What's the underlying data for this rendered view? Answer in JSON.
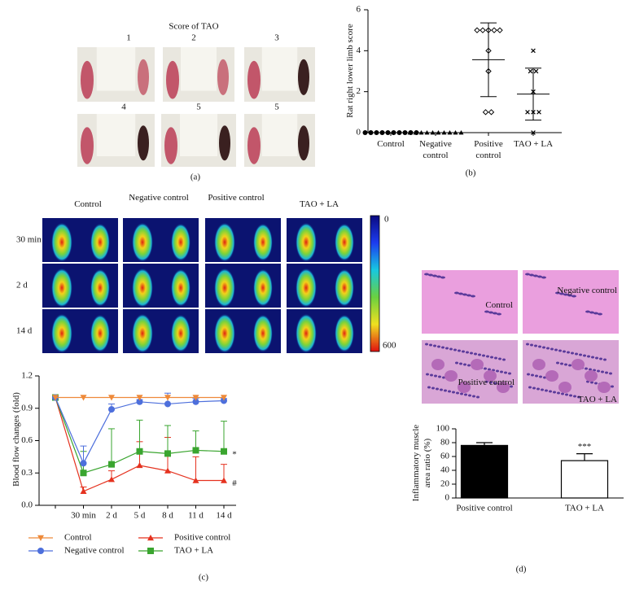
{
  "panel_a": {
    "title": "Score of TAO",
    "scores": [
      1,
      2,
      3,
      4,
      5,
      5
    ],
    "panel_label": "(a)"
  },
  "panel_c_images": {
    "columns": [
      "Control",
      "Negative control",
      "Positive control",
      "TAO + LA"
    ],
    "rows": [
      "30 min",
      "2 d",
      "14 d"
    ],
    "colorbar": {
      "min": 0,
      "max": 600
    }
  },
  "panel_d_images": {
    "labels": [
      "Control",
      "Negative control",
      "Positive control",
      "TAO + LA"
    ]
  },
  "chart_data": [
    {
      "type": "dot",
      "panel_label": "(b)",
      "y_label": "Rat right lower limb score",
      "categories": [
        "Control",
        "Negative control",
        "Positive control",
        "TAO + LA"
      ],
      "ylim": [
        0,
        6
      ],
      "yticks": [
        0,
        2,
        4,
        6
      ],
      "groups": [
        {
          "marker": "circle",
          "values": [
            0,
            0,
            0,
            0,
            0,
            0,
            0,
            0,
            0,
            0
          ],
          "mean": 0,
          "sd": 0
        },
        {
          "marker": "triangle",
          "values": [
            0,
            0,
            0,
            0,
            0,
            0,
            0,
            0,
            0,
            0
          ],
          "mean": 0,
          "sd": 0
        },
        {
          "marker": "diamond",
          "values": [
            5,
            5,
            5,
            5,
            5,
            4,
            3,
            1,
            1
          ],
          "mean": 3.56,
          "sd": 1.8
        },
        {
          "marker": "cross",
          "values": [
            4,
            3,
            3,
            2,
            1,
            1,
            1,
            0
          ],
          "mean": 1.88,
          "sd": 1.27
        }
      ]
    },
    {
      "type": "line",
      "panel_label": "(c)",
      "y_label": "Blood flow changes (fold)",
      "categories": [
        null,
        "30 min",
        "2 d",
        "5 d",
        "8 d",
        "11 d",
        "14 d"
      ],
      "ylim": [
        0,
        1.2
      ],
      "yticks": [
        {
          "value": 0,
          "label": "0.0"
        },
        0.3,
        0.6,
        0.9,
        1.2
      ],
      "annotations": [
        "*",
        "#"
      ],
      "series": [
        {
          "name": "Control",
          "color": "#ee8a3a",
          "marker": "triangle-down",
          "values": [
            1.0,
            1.0,
            1.0,
            1.0,
            1.0,
            1.0,
            1.0
          ],
          "errors": [
            0,
            0,
            0,
            0,
            0,
            0,
            0
          ]
        },
        {
          "name": "Positive control",
          "color": "#e5321f",
          "marker": "triangle",
          "values": [
            1.0,
            0.13,
            0.24,
            0.37,
            0.32,
            0.23,
            0.23
          ],
          "errors": [
            0,
            0.04,
            0.08,
            0.22,
            0.31,
            0.22,
            0.15
          ]
        },
        {
          "name": "Negative control",
          "color": "#4d6fdc",
          "marker": "circle",
          "values": [
            1.0,
            0.39,
            0.89,
            0.96,
            0.94,
            0.96,
            0.97
          ],
          "errors": [
            0,
            0.16,
            0.05,
            0.02,
            0.1,
            0.03,
            0.02
          ]
        },
        {
          "name": "TAO + LA",
          "color": "#3aa52f",
          "marker": "square",
          "values": [
            1.0,
            0.3,
            0.38,
            0.5,
            0.48,
            0.51,
            0.5
          ],
          "errors": [
            0,
            0.2,
            0.33,
            0.29,
            0.26,
            0.18,
            0.28
          ]
        }
      ]
    },
    {
      "type": "bar",
      "panel_label": "(d)",
      "y_label": "Inflammatory muscle area ratio (%)",
      "categories": [
        "Positive control",
        "TAO + LA"
      ],
      "values": [
        76,
        54
      ],
      "errors": [
        4,
        10
      ],
      "colors": [
        "#000000",
        "#ffffff"
      ],
      "annotations": [
        "***"
      ],
      "ylim": [
        0,
        100
      ],
      "yticks": [
        0,
        20,
        40,
        60,
        80,
        100
      ]
    }
  ]
}
